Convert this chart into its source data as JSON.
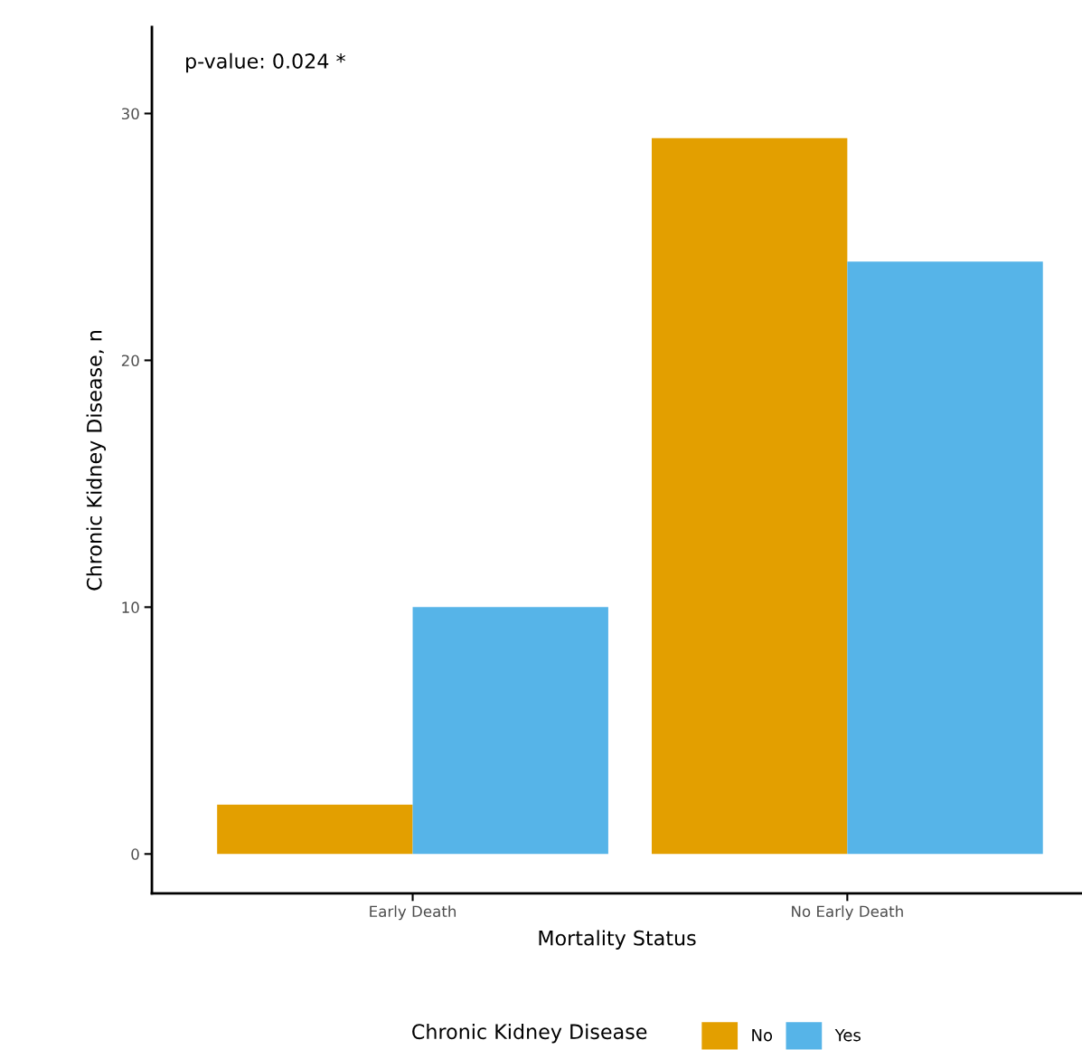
{
  "chart_data": {
    "type": "bar",
    "xlabel": "Mortality Status",
    "ylabel": "Chronic Kidney Disease, n",
    "categories": [
      "Early Death",
      "No Early Death"
    ],
    "series": [
      {
        "name": "No",
        "color": "#e39f00",
        "values": [
          2,
          29
        ]
      },
      {
        "name": "Yes",
        "color": "#56b4e8",
        "values": [
          10,
          24
        ]
      }
    ],
    "ylim": [
      -1.6,
      33.5
    ],
    "yticks": [
      0,
      10,
      20,
      30
    ],
    "grid": false,
    "legend": "bottom",
    "legend_title": "Chronic Kidney Disease",
    "annotations": [
      "p-value: 0.024 *"
    ]
  }
}
